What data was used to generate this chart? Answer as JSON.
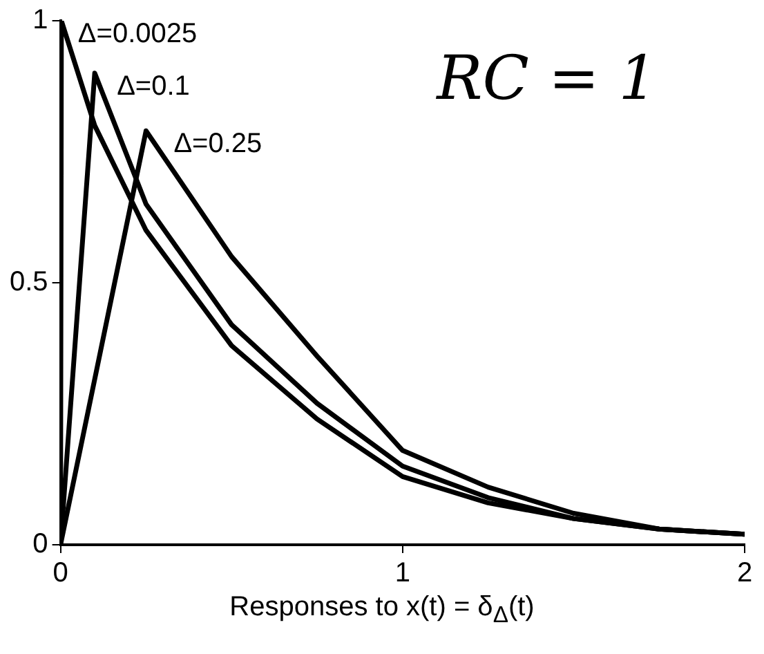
{
  "chart_data": {
    "type": "line",
    "xlabel": "Responses to x(t) = δ$_{Δ}$(t)",
    "annotations": [
      "RC = 1"
    ],
    "xlim": [
      0,
      2
    ],
    "xticks": [
      0,
      1,
      2
    ],
    "ylim": [
      0,
      1
    ],
    "yticks": [
      0,
      0.5,
      1
    ],
    "marker": "none",
    "line_style": "solid",
    "series": [
      {
        "name": "Δ=0.0025",
        "color": "#000000",
        "x": [
          0,
          0.0025,
          0.1,
          0.25,
          0.5,
          0.75,
          1,
          1.25,
          1.5,
          1.75,
          2
        ],
        "values": [
          0,
          1,
          0.8,
          0.6,
          0.38,
          0.24,
          0.13,
          0.08,
          0.05,
          0.03,
          0.02
        ]
      },
      {
        "name": "Δ=0.1",
        "color": "#000000",
        "x": [
          0,
          0.1,
          0.25,
          0.5,
          0.75,
          1,
          1.25,
          1.5,
          1.75,
          2
        ],
        "values": [
          0,
          0.9,
          0.65,
          0.42,
          0.27,
          0.15,
          0.09,
          0.05,
          0.03,
          0.02
        ]
      },
      {
        "name": "Δ=0.25",
        "color": "#000000",
        "x": [
          0,
          0.25,
          0.5,
          0.75,
          1,
          1.25,
          1.5,
          1.75,
          2
        ],
        "values": [
          0,
          0.79,
          0.55,
          0.36,
          0.18,
          0.11,
          0.06,
          0.03,
          0.02
        ]
      }
    ]
  }
}
